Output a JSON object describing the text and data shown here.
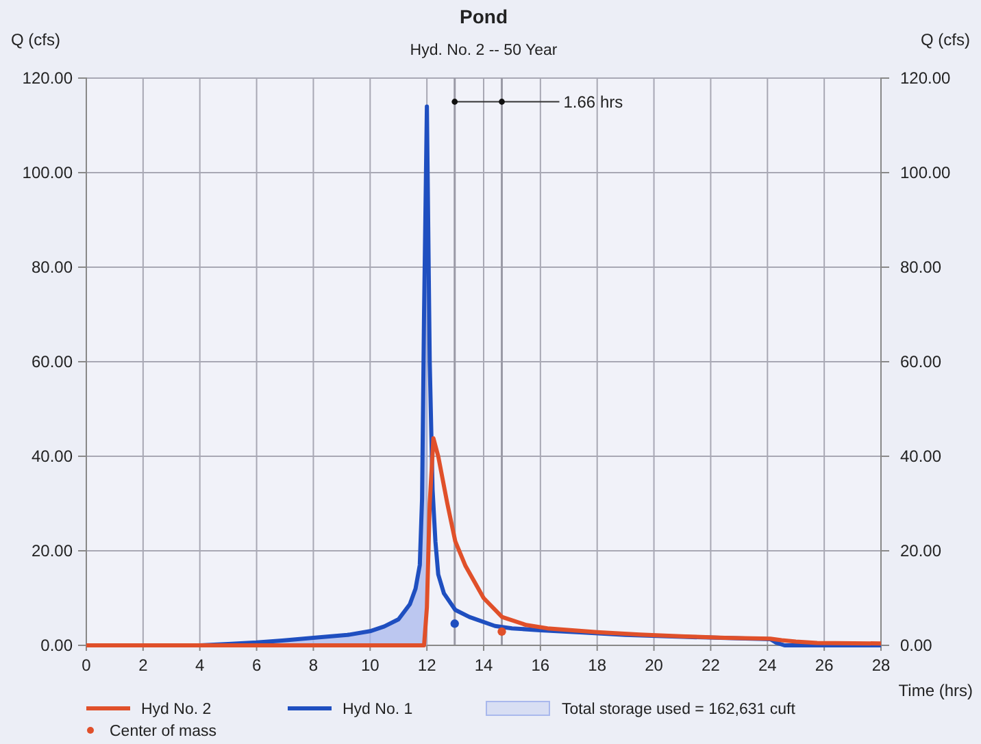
{
  "chart_data": {
    "type": "line",
    "title": "Pond",
    "subtitle": "Hyd. No. 2 -- 50 Year",
    "xlabel": "Time (hrs)",
    "ylabel": "Q (cfs)",
    "y2label": "Q (cfs)",
    "xlim": [
      0,
      28
    ],
    "xticks": [
      0,
      2,
      4,
      6,
      8,
      10,
      12,
      14,
      16,
      18,
      20,
      22,
      24,
      26,
      28
    ],
    "ylim": [
      0,
      120
    ],
    "yticks": [
      {
        "value": 0,
        "label": "0.00"
      },
      {
        "value": 20,
        "label": "20.00"
      },
      {
        "value": 40,
        "label": "40.00"
      },
      {
        "value": 60,
        "label": "60.00"
      },
      {
        "value": 80,
        "label": "80.00"
      },
      {
        "value": 100,
        "label": "100.00"
      },
      {
        "value": 120,
        "label": "120.00"
      }
    ],
    "y2lim": [
      0,
      120
    ],
    "y2ticks": [
      {
        "value": 0,
        "label": "0.00"
      },
      {
        "value": 20,
        "label": "20.00"
      },
      {
        "value": 40,
        "label": "40.00"
      },
      {
        "value": 60,
        "label": "60.00"
      },
      {
        "value": 80,
        "label": "80.00"
      },
      {
        "value": 100,
        "label": "100.00"
      },
      {
        "value": 120,
        "label": "120.00"
      }
    ],
    "grid": true,
    "legend": "bottom",
    "series": [
      {
        "name": "Total storage used = 162,631 cuft",
        "type": "area",
        "color": "#a9b8ec",
        "x": [
          0,
          4,
          5,
          6,
          6.9,
          8,
          9.2,
          10,
          10.5,
          11,
          11.4,
          11.6,
          11.75,
          11.83,
          11.9,
          12.0
        ],
        "values": [
          0,
          0,
          0.3,
          0.6,
          1.0,
          1.6,
          2.2,
          3.0,
          4.0,
          5.5,
          8.7,
          12,
          17,
          31,
          70,
          114
        ]
      },
      {
        "name": "Hyd No. 2",
        "color": "#e0502a",
        "x": [
          0,
          11.9,
          12.0,
          12.1,
          12.23,
          12.4,
          12.72,
          13.0,
          13.36,
          14,
          14.65,
          15.5,
          16.25,
          18,
          19.5,
          21.1,
          22.5,
          24.1,
          24.5,
          25,
          25.75,
          28
        ],
        "values": [
          0,
          0,
          8,
          30,
          43.8,
          40,
          30,
          22,
          16.8,
          10,
          6,
          4.3,
          3.6,
          2.8,
          2.3,
          1.9,
          1.6,
          1.4,
          1.1,
          0.8,
          0.5,
          0.4
        ]
      },
      {
        "name": "Hyd No. 1",
        "color": "#1f4fc0",
        "x": [
          0,
          4,
          5,
          6,
          6.9,
          8,
          9.2,
          10,
          10.5,
          11,
          11.4,
          11.6,
          11.75,
          11.83,
          11.9,
          12.0,
          12.1,
          12.2,
          12.3,
          12.4,
          12.6,
          13,
          13.5,
          14.4,
          15,
          16,
          17.5,
          19,
          21,
          23,
          24.1,
          24.3,
          24.6,
          28
        ],
        "values": [
          0,
          0,
          0.3,
          0.6,
          1.0,
          1.6,
          2.2,
          3.0,
          4.0,
          5.5,
          8.7,
          12,
          17,
          31,
          70,
          114,
          60,
          33,
          22,
          15,
          11,
          7.5,
          6,
          4.1,
          3.6,
          3.2,
          2.7,
          2.2,
          1.8,
          1.5,
          1.3,
          0.6,
          0,
          0
        ]
      },
      {
        "name": "Center of mass",
        "type": "scatter",
        "color": "#e0502a",
        "colors": [
          "#1f4fc0",
          "#e0502a"
        ],
        "marker": "circle",
        "x": [
          12.98,
          14.64
        ],
        "values": [
          4.6,
          2.9
        ]
      }
    ],
    "ref_lines": [
      {
        "axis": "x",
        "value": 12.98,
        "color": "#9a9aa6"
      },
      {
        "axis": "x",
        "value": 14.64,
        "color": "#9a9aa6"
      }
    ],
    "annotations": [
      {
        "text": "1.66 hrs",
        "x": 12.98,
        "y": 115
      }
    ]
  }
}
